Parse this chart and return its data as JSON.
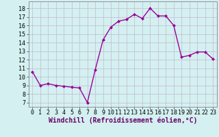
{
  "x": [
    0,
    1,
    2,
    3,
    4,
    5,
    6,
    7,
    8,
    9,
    10,
    11,
    12,
    13,
    14,
    15,
    16,
    17,
    18,
    19,
    20,
    21,
    22,
    23
  ],
  "y": [
    10.6,
    9.0,
    9.2,
    9.0,
    8.9,
    8.8,
    8.7,
    7.0,
    10.8,
    14.3,
    15.8,
    16.5,
    16.7,
    17.3,
    16.8,
    18.0,
    17.1,
    17.1,
    16.0,
    12.3,
    12.5,
    12.9,
    12.9,
    12.1
  ],
  "line_color": "#990099",
  "marker": "D",
  "markersize": 2,
  "linewidth": 1.0,
  "xlabel": "Windchill (Refroidissement éolien,°C)",
  "xlabel_fontsize": 7,
  "xticks": [
    0,
    1,
    2,
    3,
    4,
    5,
    6,
    7,
    8,
    9,
    10,
    11,
    12,
    13,
    14,
    15,
    16,
    17,
    18,
    19,
    20,
    21,
    22,
    23
  ],
  "yticks": [
    7,
    8,
    9,
    10,
    11,
    12,
    13,
    14,
    15,
    16,
    17,
    18
  ],
  "ylim": [
    6.5,
    18.8
  ],
  "xlim": [
    -0.5,
    23.5
  ],
  "bg_color": "#d4f0f0",
  "grid_color": "#b8d8d8",
  "tick_fontsize": 6,
  "spine_color": "#9090a0"
}
